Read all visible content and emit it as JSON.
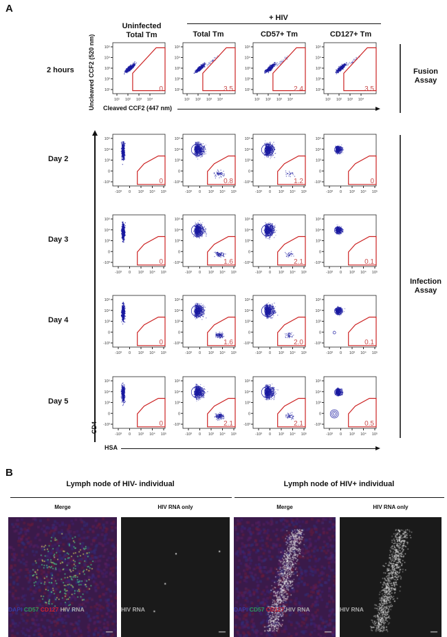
{
  "panel_a": {
    "letter": "A",
    "group_label": "+ HIV",
    "columns": [
      {
        "label_line1": "Uninfected",
        "label_line2": "Total Tm"
      },
      {
        "label_line1": "Total Tm",
        "label_line2": ""
      },
      {
        "label_line1": "CD57+ Tm",
        "label_line2": ""
      },
      {
        "label_line1": "CD127+ Tm",
        "label_line2": ""
      }
    ],
    "fusion": {
      "row_label": "2 hours",
      "assay_label_line1": "Fusion",
      "assay_label_line2": "Assay",
      "y_axis_label": "Uncleaved CCF2 (520 nm)",
      "x_axis_label": "Cleaved CCF2 (447 nm)",
      "x_ticks": [
        "10¹",
        "10²",
        "10³",
        "10⁴"
      ],
      "y_ticks": [
        "10⁵",
        "10⁴",
        "10³",
        "10²",
        "10¹"
      ],
      "gate_values": [
        "0",
        "3.5",
        "2.4",
        "3.5"
      ]
    },
    "infection": {
      "assay_label_line1": "Infection",
      "assay_label_line2": "Assay",
      "y_axis_label": "CD4",
      "x_axis_label": "HSA",
      "x_ticks": [
        "-10³",
        "0",
        "10³",
        "10⁴",
        "10⁵"
      ],
      "y_ticks": [
        "10⁵",
        "10⁴",
        "10³",
        "0",
        "-10³"
      ],
      "rows": [
        {
          "label": "Day 2",
          "gate_values": [
            "0",
            "0.8",
            "1.2",
            "0"
          ]
        },
        {
          "label": "Day 3",
          "gate_values": [
            "0",
            "1.6",
            "2.1",
            "0.1"
          ]
        },
        {
          "label": "Day 4",
          "gate_values": [
            "0",
            "1.6",
            "2.0",
            "0.1"
          ]
        },
        {
          "label": "Day 5",
          "gate_values": [
            "0",
            "2.1",
            "2.1",
            "0.5"
          ]
        }
      ]
    },
    "colors": {
      "events": "#1a1aa0",
      "gate": "#cc2222",
      "gate_value": "#c84a4a"
    }
  },
  "panel_b": {
    "letter": "B",
    "groups": [
      {
        "title": "Lymph node of HIV- individual",
        "images": [
          {
            "label": "Merge",
            "legend": [
              {
                "text": "DAPI",
                "color": "#3a3aa0"
              },
              {
                "text": "CD57",
                "color": "#2a9a5a"
              },
              {
                "text": "CD127",
                "color": "#cc2233"
              },
              {
                "text": "HIV RNA",
                "color": "#aaaaaa"
              }
            ]
          },
          {
            "label": "HIV RNA only",
            "legend": [
              {
                "text": "HIV RNA",
                "color": "#aaaaaa"
              }
            ]
          }
        ]
      },
      {
        "title": "Lymph node of HIV+ individual",
        "images": [
          {
            "label": "Merge",
            "legend": [
              {
                "text": "DAPI",
                "color": "#3a3aa0"
              },
              {
                "text": "CD57",
                "color": "#2a9a5a"
              },
              {
                "text": "CD127",
                "color": "#cc2233"
              },
              {
                "text": "HIV RNA",
                "color": "#aaaaaa"
              }
            ]
          },
          {
            "label": "HIV RNA only",
            "legend": [
              {
                "text": "HIV RNA",
                "color": "#aaaaaa"
              }
            ]
          }
        ]
      }
    ]
  }
}
